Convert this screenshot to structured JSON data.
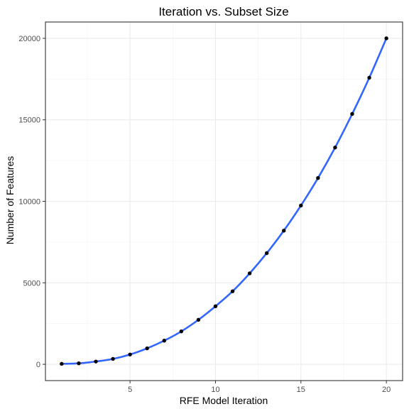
{
  "chart_data": {
    "type": "scatter",
    "title": "Iteration vs. Subset Size",
    "xlabel": "RFE Model Iteration",
    "ylabel": "Number of Features",
    "xlim": [
      0.05,
      20.95
    ],
    "ylim": [
      -1000,
      21000
    ],
    "x_ticks": [
      5,
      10,
      15,
      20
    ],
    "y_ticks": [
      0,
      5000,
      10000,
      15000,
      20000
    ],
    "grid": true,
    "legend": "none",
    "series": [
      {
        "x": [
          1,
          2,
          3,
          4,
          5,
          6,
          7,
          8,
          9,
          10,
          11,
          12,
          13,
          14,
          15,
          16,
          17,
          18,
          19,
          20
        ],
        "values": [
          30,
          60,
          170,
          330,
          600,
          980,
          1450,
          2020,
          2730,
          3560,
          4480,
          5580,
          6820,
          8200,
          9740,
          11430,
          13300,
          15360,
          17580,
          20000
        ]
      }
    ],
    "trend_line": {
      "method": "smooth",
      "color": "#3366ff"
    },
    "point_color": "#000000"
  }
}
